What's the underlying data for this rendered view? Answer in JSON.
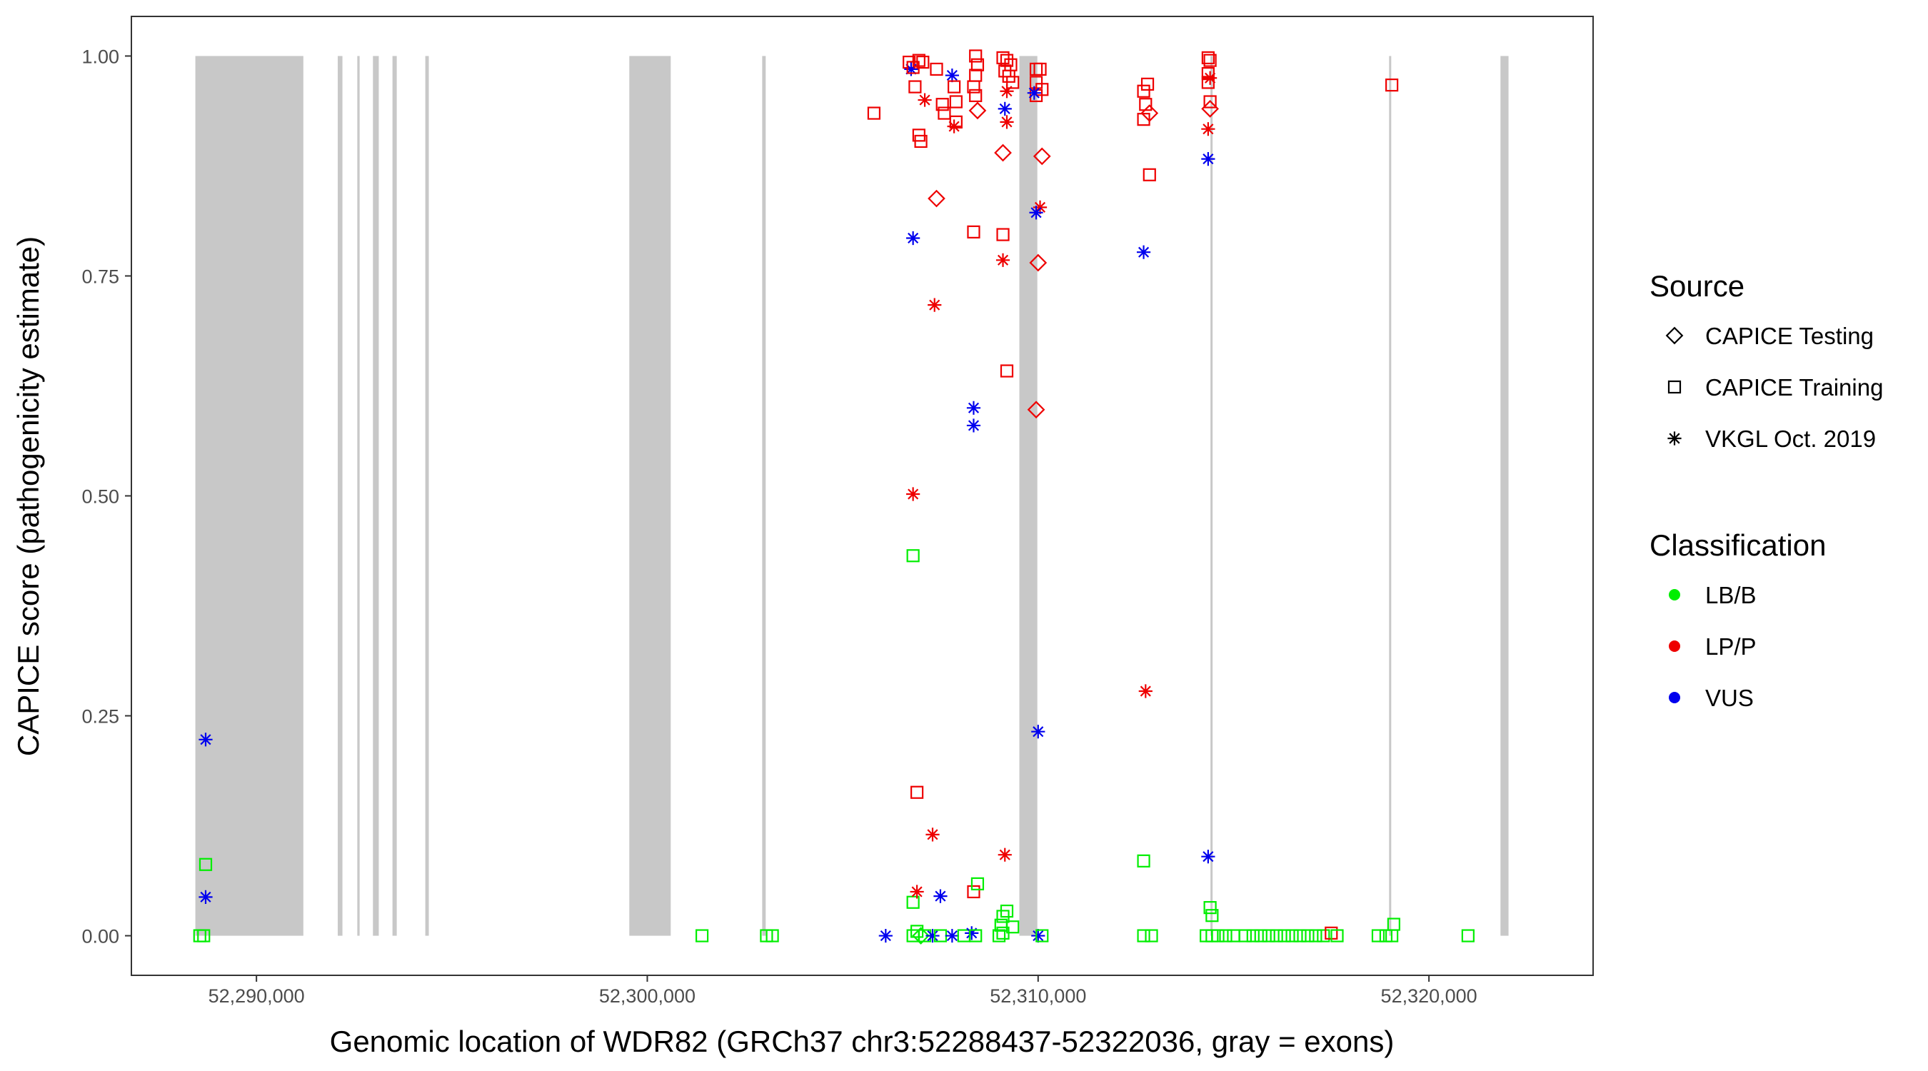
{
  "chart_data": {
    "type": "scatter",
    "xlabel": "Genomic location of WDR82 (GRCh37 chr3:52288437-52322036, gray = exons)",
    "ylabel": "CAPICE score (pathogenicity estimate)",
    "xlim": [
      52286800,
      52324200
    ],
    "ylim": [
      -0.045,
      1.045
    ],
    "x_ticks": [
      52290000,
      52300000,
      52310000,
      52320000
    ],
    "x_tick_labels": [
      "52,290,000",
      "52,300,000",
      "52,310,000",
      "52,320,000"
    ],
    "y_ticks": [
      0,
      0.25,
      0.5,
      0.75,
      1
    ],
    "y_tick_labels": [
      "0.00",
      "0.25",
      "0.50",
      "0.75",
      "1.00"
    ],
    "exons": [
      [
        52288437,
        52291200
      ],
      [
        52292080,
        52292200
      ],
      [
        52292580,
        52292640
      ],
      [
        52292980,
        52293130
      ],
      [
        52293480,
        52293590
      ],
      [
        52294320,
        52294410
      ],
      [
        52299540,
        52300600
      ],
      [
        52302940,
        52303030
      ],
      [
        52309520,
        52309980
      ],
      [
        52314410,
        52314460
      ],
      [
        52318980,
        52319030
      ],
      [
        52321830,
        52322036
      ]
    ],
    "colors": {
      "LB/B": "#00ee00",
      "LP/P": "#ee0000",
      "VUS": "#0000ee",
      "exon": "#c8c8c8"
    },
    "legend": {
      "source_title": "Source",
      "source_items": [
        {
          "label": "CAPICE Testing",
          "shape": "diamond"
        },
        {
          "label": "CAPICE Training",
          "shape": "square"
        },
        {
          "label": "VKGL Oct. 2019",
          "shape": "asterisk"
        }
      ],
      "class_title": "Classification",
      "class_items": [
        {
          "label": "LB/B",
          "color": "#00ee00"
        },
        {
          "label": "LP/P",
          "color": "#ee0000"
        },
        {
          "label": "VUS",
          "color": "#0000ee"
        }
      ]
    },
    "points": [
      {
        "x": 52288700,
        "y": 0.223,
        "shape": "asterisk",
        "cls": "VUS"
      },
      {
        "x": 52288700,
        "y": 0.044,
        "shape": "asterisk",
        "cls": "VUS"
      },
      {
        "x": 52288700,
        "y": 0.081,
        "shape": "square",
        "cls": "LB/B"
      },
      {
        "x": 52288550,
        "y": 0.0,
        "shape": "square",
        "cls": "LB/B"
      },
      {
        "x": 52288650,
        "y": 0.0,
        "shape": "square",
        "cls": "LB/B"
      },
      {
        "x": 52301400,
        "y": 0.0,
        "shape": "square",
        "cls": "LB/B"
      },
      {
        "x": 52303050,
        "y": 0.0,
        "shape": "square",
        "cls": "LB/B"
      },
      {
        "x": 52303200,
        "y": 0.0,
        "shape": "square",
        "cls": "LB/B"
      },
      {
        "x": 52306100,
        "y": 0.0,
        "shape": "asterisk",
        "cls": "VUS"
      },
      {
        "x": 52306800,
        "y": 0.0,
        "shape": "square",
        "cls": "LB/B"
      },
      {
        "x": 52306900,
        "y": 0.005,
        "shape": "square",
        "cls": "LB/B"
      },
      {
        "x": 52307000,
        "y": 0.0,
        "shape": "diamond",
        "cls": "LB/B"
      },
      {
        "x": 52307100,
        "y": 0.0,
        "shape": "square",
        "cls": "LB/B"
      },
      {
        "x": 52307300,
        "y": 0.0,
        "shape": "asterisk",
        "cls": "VUS"
      },
      {
        "x": 52307500,
        "y": 0.0,
        "shape": "square",
        "cls": "LB/B"
      },
      {
        "x": 52307800,
        "y": 0.0,
        "shape": "asterisk",
        "cls": "VUS"
      },
      {
        "x": 52308100,
        "y": 0.0,
        "shape": "square",
        "cls": "LB/B"
      },
      {
        "x": 52308300,
        "y": 0.003,
        "shape": "asterisk",
        "cls": "VUS"
      },
      {
        "x": 52308400,
        "y": 0.0,
        "shape": "square",
        "cls": "LB/B"
      },
      {
        "x": 52309000,
        "y": 0.0,
        "shape": "square",
        "cls": "LB/B"
      },
      {
        "x": 52309100,
        "y": 0.003,
        "shape": "square",
        "cls": "LB/B"
      },
      {
        "x": 52310000,
        "y": 0.0,
        "shape": "asterisk",
        "cls": "VUS"
      },
      {
        "x": 52310100,
        "y": 0.0,
        "shape": "square",
        "cls": "LB/B"
      },
      {
        "x": 52306800,
        "y": 0.038,
        "shape": "square",
        "cls": "LB/B"
      },
      {
        "x": 52306900,
        "y": 0.05,
        "shape": "asterisk",
        "cls": "LP/P"
      },
      {
        "x": 52307500,
        "y": 0.045,
        "shape": "asterisk",
        "cls": "VUS"
      },
      {
        "x": 52308350,
        "y": 0.05,
        "shape": "square",
        "cls": "LP/P"
      },
      {
        "x": 52308450,
        "y": 0.059,
        "shape": "square",
        "cls": "LB/B"
      },
      {
        "x": 52309050,
        "y": 0.012,
        "shape": "square",
        "cls": "LB/B"
      },
      {
        "x": 52309100,
        "y": 0.022,
        "shape": "square",
        "cls": "LB/B"
      },
      {
        "x": 52309200,
        "y": 0.028,
        "shape": "square",
        "cls": "LB/B"
      },
      {
        "x": 52309350,
        "y": 0.01,
        "shape": "square",
        "cls": "LB/B"
      },
      {
        "x": 52307300,
        "y": 0.115,
        "shape": "asterisk",
        "cls": "LP/P"
      },
      {
        "x": 52309150,
        "y": 0.092,
        "shape": "asterisk",
        "cls": "LP/P"
      },
      {
        "x": 52306900,
        "y": 0.163,
        "shape": "square",
        "cls": "LP/P"
      },
      {
        "x": 52310000,
        "y": 0.232,
        "shape": "asterisk",
        "cls": "VUS"
      },
      {
        "x": 52306800,
        "y": 0.432,
        "shape": "square",
        "cls": "LB/B"
      },
      {
        "x": 52306800,
        "y": 0.502,
        "shape": "asterisk",
        "cls": "LP/P"
      },
      {
        "x": 52308350,
        "y": 0.6,
        "shape": "asterisk",
        "cls": "VUS"
      },
      {
        "x": 52308350,
        "y": 0.58,
        "shape": "asterisk",
        "cls": "VUS"
      },
      {
        "x": 52309200,
        "y": 0.642,
        "shape": "square",
        "cls": "LP/P"
      },
      {
        "x": 52309950,
        "y": 0.598,
        "shape": "diamond",
        "cls": "LP/P"
      },
      {
        "x": 52307350,
        "y": 0.717,
        "shape": "asterisk",
        "cls": "LP/P"
      },
      {
        "x": 52306800,
        "y": 0.793,
        "shape": "asterisk",
        "cls": "VUS"
      },
      {
        "x": 52307400,
        "y": 0.838,
        "shape": "diamond",
        "cls": "LP/P"
      },
      {
        "x": 52308350,
        "y": 0.8,
        "shape": "square",
        "cls": "LP/P"
      },
      {
        "x": 52309100,
        "y": 0.797,
        "shape": "square",
        "cls": "LP/P"
      },
      {
        "x": 52309100,
        "y": 0.768,
        "shape": "asterisk",
        "cls": "LP/P"
      },
      {
        "x": 52310000,
        "y": 0.765,
        "shape": "diamond",
        "cls": "LP/P"
      },
      {
        "x": 52310050,
        "y": 0.828,
        "shape": "asterisk",
        "cls": "LP/P"
      },
      {
        "x": 52309950,
        "y": 0.822,
        "shape": "asterisk",
        "cls": "VUS"
      },
      {
        "x": 52309100,
        "y": 0.89,
        "shape": "diamond",
        "cls": "LP/P"
      },
      {
        "x": 52310100,
        "y": 0.886,
        "shape": "diamond",
        "cls": "LP/P"
      },
      {
        "x": 52305800,
        "y": 0.935,
        "shape": "square",
        "cls": "LP/P"
      },
      {
        "x": 52306700,
        "y": 0.993,
        "shape": "square",
        "cls": "LP/P"
      },
      {
        "x": 52306750,
        "y": 0.985,
        "shape": "asterisk",
        "cls": "VUS"
      },
      {
        "x": 52306800,
        "y": 0.987,
        "shape": "square",
        "cls": "LP/P"
      },
      {
        "x": 52306850,
        "y": 0.965,
        "shape": "square",
        "cls": "LP/P"
      },
      {
        "x": 52306950,
        "y": 0.995,
        "shape": "square",
        "cls": "LP/P"
      },
      {
        "x": 52307050,
        "y": 0.993,
        "shape": "square",
        "cls": "LP/P"
      },
      {
        "x": 52307100,
        "y": 0.95,
        "shape": "asterisk",
        "cls": "LP/P"
      },
      {
        "x": 52306950,
        "y": 0.91,
        "shape": "square",
        "cls": "LP/P"
      },
      {
        "x": 52307000,
        "y": 0.903,
        "shape": "square",
        "cls": "LP/P"
      },
      {
        "x": 52307400,
        "y": 0.985,
        "shape": "square",
        "cls": "LP/P"
      },
      {
        "x": 52307550,
        "y": 0.945,
        "shape": "square",
        "cls": "LP/P"
      },
      {
        "x": 52307600,
        "y": 0.935,
        "shape": "square",
        "cls": "LP/P"
      },
      {
        "x": 52307800,
        "y": 0.978,
        "shape": "asterisk",
        "cls": "VUS"
      },
      {
        "x": 52307850,
        "y": 0.965,
        "shape": "square",
        "cls": "LP/P"
      },
      {
        "x": 52307900,
        "y": 0.948,
        "shape": "square",
        "cls": "LP/P"
      },
      {
        "x": 52307850,
        "y": 0.92,
        "shape": "asterisk",
        "cls": "LP/P"
      },
      {
        "x": 52307900,
        "y": 0.925,
        "shape": "square",
        "cls": "LP/P"
      },
      {
        "x": 52308400,
        "y": 1.0,
        "shape": "square",
        "cls": "LP/P"
      },
      {
        "x": 52308450,
        "y": 0.99,
        "shape": "square",
        "cls": "LP/P"
      },
      {
        "x": 52308400,
        "y": 0.978,
        "shape": "square",
        "cls": "LP/P"
      },
      {
        "x": 52308350,
        "y": 0.965,
        "shape": "square",
        "cls": "LP/P"
      },
      {
        "x": 52308400,
        "y": 0.955,
        "shape": "square",
        "cls": "LP/P"
      },
      {
        "x": 52308450,
        "y": 0.938,
        "shape": "diamond",
        "cls": "LP/P"
      },
      {
        "x": 52309100,
        "y": 0.998,
        "shape": "square",
        "cls": "LP/P"
      },
      {
        "x": 52309200,
        "y": 0.995,
        "shape": "square",
        "cls": "LP/P"
      },
      {
        "x": 52309300,
        "y": 0.99,
        "shape": "square",
        "cls": "LP/P"
      },
      {
        "x": 52309150,
        "y": 0.983,
        "shape": "square",
        "cls": "LP/P"
      },
      {
        "x": 52309250,
        "y": 0.977,
        "shape": "square",
        "cls": "LP/P"
      },
      {
        "x": 52309350,
        "y": 0.97,
        "shape": "square",
        "cls": "LP/P"
      },
      {
        "x": 52309200,
        "y": 0.96,
        "shape": "asterisk",
        "cls": "LP/P"
      },
      {
        "x": 52309150,
        "y": 0.94,
        "shape": "asterisk",
        "cls": "VUS"
      },
      {
        "x": 52309200,
        "y": 0.925,
        "shape": "asterisk",
        "cls": "LP/P"
      },
      {
        "x": 52309950,
        "y": 0.985,
        "shape": "square",
        "cls": "LP/P"
      },
      {
        "x": 52310050,
        "y": 0.985,
        "shape": "square",
        "cls": "LP/P"
      },
      {
        "x": 52309950,
        "y": 0.97,
        "shape": "square",
        "cls": "LP/P"
      },
      {
        "x": 52310100,
        "y": 0.962,
        "shape": "square",
        "cls": "LP/P"
      },
      {
        "x": 52309950,
        "y": 0.955,
        "shape": "square",
        "cls": "LP/P"
      },
      {
        "x": 52309900,
        "y": 0.958,
        "shape": "asterisk",
        "cls": "VUS"
      },
      {
        "x": 52312700,
        "y": 0.96,
        "shape": "square",
        "cls": "LP/P"
      },
      {
        "x": 52312800,
        "y": 0.968,
        "shape": "square",
        "cls": "LP/P"
      },
      {
        "x": 52312750,
        "y": 0.945,
        "shape": "square",
        "cls": "LP/P"
      },
      {
        "x": 52312700,
        "y": 0.928,
        "shape": "square",
        "cls": "LP/P"
      },
      {
        "x": 52312850,
        "y": 0.935,
        "shape": "diamond",
        "cls": "LP/P"
      },
      {
        "x": 52312850,
        "y": 0.865,
        "shape": "square",
        "cls": "LP/P"
      },
      {
        "x": 52312700,
        "y": 0.777,
        "shape": "asterisk",
        "cls": "VUS"
      },
      {
        "x": 52312750,
        "y": 0.278,
        "shape": "asterisk",
        "cls": "LP/P"
      },
      {
        "x": 52312700,
        "y": 0.085,
        "shape": "square",
        "cls": "LB/B"
      },
      {
        "x": 52312700,
        "y": 0.0,
        "shape": "square",
        "cls": "LB/B"
      },
      {
        "x": 52312900,
        "y": 0.0,
        "shape": "square",
        "cls": "LB/B"
      },
      {
        "x": 52314350,
        "y": 0.998,
        "shape": "square",
        "cls": "LP/P"
      },
      {
        "x": 52314400,
        "y": 0.995,
        "shape": "square",
        "cls": "LP/P"
      },
      {
        "x": 52314350,
        "y": 0.98,
        "shape": "square",
        "cls": "LP/P"
      },
      {
        "x": 52314400,
        "y": 0.975,
        "shape": "asterisk",
        "cls": "LP/P"
      },
      {
        "x": 52314350,
        "y": 0.97,
        "shape": "square",
        "cls": "LP/P"
      },
      {
        "x": 52314400,
        "y": 0.948,
        "shape": "square",
        "cls": "LP/P"
      },
      {
        "x": 52314400,
        "y": 0.94,
        "shape": "diamond",
        "cls": "LP/P"
      },
      {
        "x": 52314350,
        "y": 0.917,
        "shape": "asterisk",
        "cls": "LP/P"
      },
      {
        "x": 52314350,
        "y": 0.883,
        "shape": "asterisk",
        "cls": "VUS"
      },
      {
        "x": 52314350,
        "y": 0.09,
        "shape": "asterisk",
        "cls": "VUS"
      },
      {
        "x": 52314400,
        "y": 0.032,
        "shape": "square",
        "cls": "LB/B"
      },
      {
        "x": 52314450,
        "y": 0.023,
        "shape": "square",
        "cls": "LB/B"
      },
      {
        "x": 52314300,
        "y": 0.0,
        "shape": "square",
        "cls": "LB/B"
      },
      {
        "x": 52314450,
        "y": 0.0,
        "shape": "square",
        "cls": "LB/B"
      },
      {
        "x": 52314600,
        "y": 0.0,
        "shape": "square",
        "cls": "LB/B"
      },
      {
        "x": 52314800,
        "y": 0.0,
        "shape": "square",
        "cls": "LB/B"
      },
      {
        "x": 52315000,
        "y": 0.0,
        "shape": "square",
        "cls": "LB/B"
      },
      {
        "x": 52315300,
        "y": 0.0,
        "shape": "square",
        "cls": "LB/B"
      },
      {
        "x": 52315500,
        "y": 0.0,
        "shape": "square",
        "cls": "LB/B"
      },
      {
        "x": 52315700,
        "y": 0.0,
        "shape": "square",
        "cls": "LB/B"
      },
      {
        "x": 52315900,
        "y": 0.0,
        "shape": "square",
        "cls": "LB/B"
      },
      {
        "x": 52316100,
        "y": 0.0,
        "shape": "square",
        "cls": "LB/B"
      },
      {
        "x": 52316300,
        "y": 0.0,
        "shape": "square",
        "cls": "LB/B"
      },
      {
        "x": 52316500,
        "y": 0.0,
        "shape": "square",
        "cls": "LB/B"
      },
      {
        "x": 52316700,
        "y": 0.0,
        "shape": "square",
        "cls": "LB/B"
      },
      {
        "x": 52316900,
        "y": 0.0,
        "shape": "square",
        "cls": "LB/B"
      },
      {
        "x": 52317100,
        "y": 0.0,
        "shape": "square",
        "cls": "LB/B"
      },
      {
        "x": 52317300,
        "y": 0.0,
        "shape": "square",
        "cls": "LB/B"
      },
      {
        "x": 52317500,
        "y": 0.003,
        "shape": "square",
        "cls": "LP/P"
      },
      {
        "x": 52317650,
        "y": 0.0,
        "shape": "square",
        "cls": "LB/B"
      },
      {
        "x": 52318700,
        "y": 0.0,
        "shape": "square",
        "cls": "LB/B"
      },
      {
        "x": 52318900,
        "y": 0.0,
        "shape": "square",
        "cls": "LB/B"
      },
      {
        "x": 52319050,
        "y": 0.0,
        "shape": "square",
        "cls": "LB/B"
      },
      {
        "x": 52319100,
        "y": 0.013,
        "shape": "square",
        "cls": "LB/B"
      },
      {
        "x": 52319050,
        "y": 0.967,
        "shape": "square",
        "cls": "LP/P"
      },
      {
        "x": 52321000,
        "y": 0.0,
        "shape": "square",
        "cls": "LB/B"
      }
    ]
  }
}
